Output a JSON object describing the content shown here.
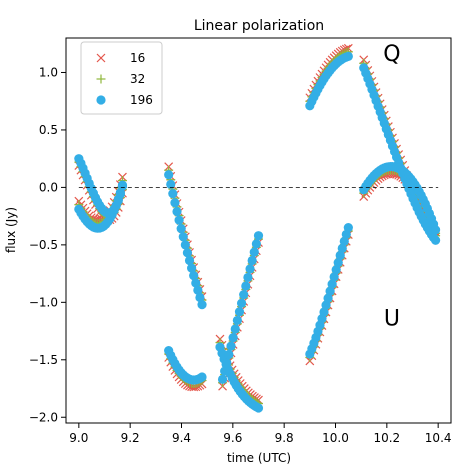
{
  "chart_data": {
    "type": "scatter",
    "title": "Linear polarization",
    "xlabel": "time (UTC)",
    "ylabel": "flux (Jy)",
    "xlim": [
      8.95,
      10.45
    ],
    "ylim": [
      -2.05,
      1.3
    ],
    "xticks": [
      9.0,
      9.2,
      9.4,
      9.6,
      9.8,
      10.0,
      10.2,
      10.4
    ],
    "yticks": [
      -2.0,
      -1.5,
      -1.0,
      -0.5,
      0.0,
      0.5,
      1.0
    ],
    "xtick_labels": [
      "9.0",
      "9.2",
      "9.4",
      "9.6",
      "9.8",
      "10.0",
      "10.2",
      "10.4"
    ],
    "ytick_labels": [
      "−2.0",
      "−1.5",
      "−1.0",
      "−0.5",
      "0.0",
      "0.5",
      "1.0"
    ],
    "reference_line": {
      "y": 0,
      "style": "dashed"
    },
    "grid": false,
    "legend": {
      "position": "top-left"
    },
    "annotations": [
      {
        "text": "Q",
        "x": 10.22,
        "y": 1.1
      },
      {
        "text": "U",
        "x": 10.22,
        "y": -1.2
      }
    ],
    "colors": {
      "s16": "#e4574c",
      "s32": "#8fb83c",
      "s196": "#33aee6"
    },
    "segments": [
      {
        "Q": {
          "t0": 9.0,
          "t1": 9.17,
          "y0": -0.15,
          "y1": 0.06,
          "curve": [
            -0.38,
            -0.42
          ]
        },
        "U": {
          "t0": 9.0,
          "t1": 9.17,
          "y0": 0.22,
          "y1": -0.02,
          "curve": [
            -0.05,
            -0.55
          ]
        }
      },
      {
        "Q": {
          "t0": 9.35,
          "t1": 9.48,
          "y0": 0.15,
          "y1": -0.98,
          "curve": [
            -0.3,
            -0.65
          ]
        },
        "U": {
          "t0": 9.35,
          "t1": 9.48,
          "y0": -1.45,
          "y1": -1.68,
          "curve": [
            -1.68,
            -1.75
          ]
        }
      },
      {
        "Q": {
          "t0": 9.55,
          "t1": 9.7,
          "y0": -1.35,
          "y1": -1.88,
          "curve": [
            -1.7,
            -1.82
          ]
        },
        "U": {
          "t0": 9.56,
          "t1": 9.7,
          "y0": -1.7,
          "y1": -0.45,
          "curve": [
            -1.3,
            -0.85
          ]
        }
      },
      {
        "Q": {
          "t0": 9.9,
          "t1": 10.05,
          "y0": 0.75,
          "y1": 1.18,
          "curve": [
            1.0,
            1.15
          ]
        },
        "U": {
          "t0": 9.9,
          "t1": 10.05,
          "y0": -1.48,
          "y1": -0.38,
          "curve": [
            -1.2,
            -0.75
          ]
        }
      },
      {
        "Q": {
          "t0": 10.11,
          "t1": 10.39,
          "y0": 1.08,
          "y1": -0.42,
          "curve": [
            0.55,
            -0.15
          ]
        },
        "U": {
          "t0": 10.11,
          "t1": 10.39,
          "y0": -0.05,
          "y1": -0.4,
          "curve": [
            0.3,
            0.2
          ]
        }
      }
    ],
    "series": [
      {
        "name": "16",
        "marker": "x",
        "color": "#e4574c",
        "q_offset": 0.03,
        "u_offset": -0.03,
        "spacing": 0.008
      },
      {
        "name": "32",
        "marker": "+",
        "color": "#8fb83c",
        "q_offset": 0.0,
        "u_offset": 0.0,
        "spacing": 0.008
      },
      {
        "name": "196",
        "marker": "o",
        "color": "#33aee6",
        "q_offset": -0.04,
        "u_offset": 0.03,
        "spacing": 0.008
      }
    ]
  }
}
